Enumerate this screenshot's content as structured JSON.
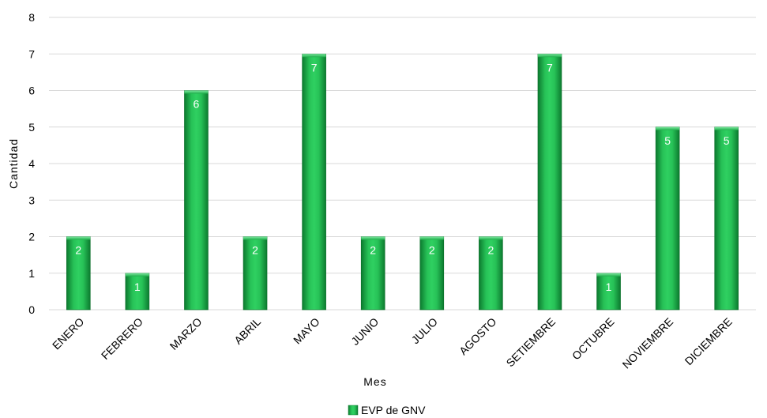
{
  "chart_data": {
    "type": "bar",
    "title": "",
    "xlabel": "Mes",
    "ylabel": "Cantidad",
    "ylim": [
      0,
      8
    ],
    "y_ticks": [
      0,
      1,
      2,
      3,
      4,
      5,
      6,
      7,
      8
    ],
    "grid": true,
    "legend_position": "bottom",
    "categories": [
      "ENERO",
      "FEBRERO",
      "MARZO",
      "ABRIL",
      "MAYO",
      "JUNIO",
      "JULIO",
      "AGOSTO",
      "SETIEMBRE",
      "OCTUBRE",
      "NOVIEMBRE",
      "DICIEMBRE"
    ],
    "series": [
      {
        "name": "EVP de GNV",
        "values": [
          2,
          1,
          6,
          2,
          7,
          2,
          2,
          2,
          7,
          1,
          5,
          5
        ],
        "color": "#1fae4b"
      }
    ],
    "data_labels": [
      "2",
      "1",
      "6",
      "2",
      "7",
      "2",
      "2",
      "2",
      "7",
      "1",
      "5",
      "5"
    ]
  }
}
